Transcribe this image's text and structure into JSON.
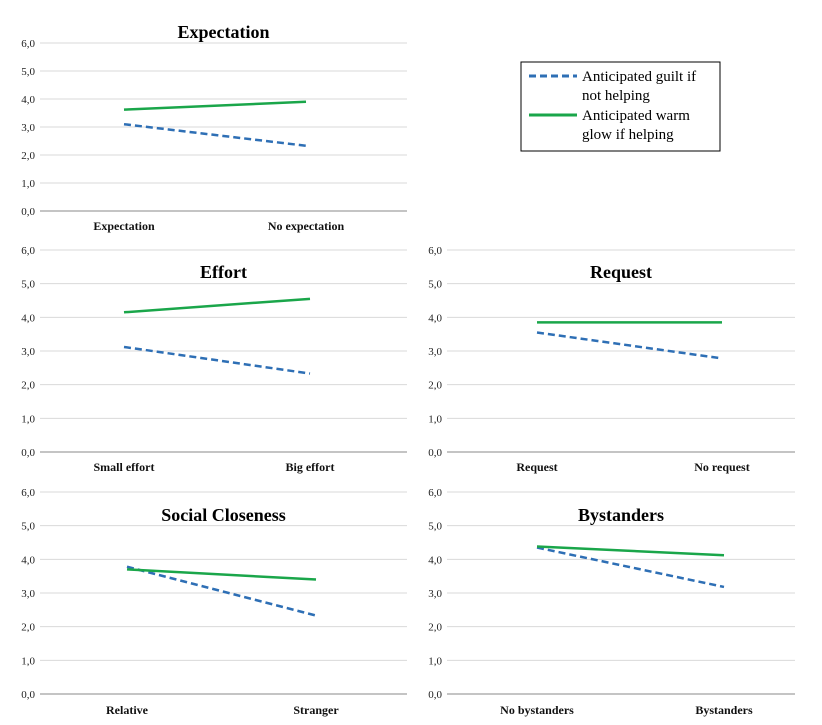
{
  "legend": {
    "items": [
      {
        "label_line1": "Anticipated guilt if",
        "label_line2": "not helping",
        "style": "dashed",
        "color": "#2e6fb5"
      },
      {
        "label_line1": "Anticipated warm",
        "label_line2": "glow if helping",
        "style": "solid",
        "color": "#1aa64a"
      }
    ]
  },
  "chart_data": [
    {
      "type": "line",
      "title": "Expectation",
      "categories": [
        "Expectation",
        "No expectation"
      ],
      "ylim": [
        0,
        6
      ],
      "yticks": [
        "0,0",
        "1,0",
        "2,0",
        "3,0",
        "4,0",
        "5,0",
        "6,0"
      ],
      "grid": true,
      "series": [
        {
          "name": "Anticipated guilt if not helping",
          "values": [
            3.1,
            2.33
          ]
        },
        {
          "name": "Anticipated warm glow if helping",
          "values": [
            3.62,
            3.9
          ]
        }
      ]
    },
    {
      "type": "line",
      "title": "Effort",
      "categories": [
        "Small effort",
        "Big effort"
      ],
      "ylim": [
        0,
        6
      ],
      "yticks": [
        "0,0",
        "1,0",
        "2,0",
        "3,0",
        "4,0",
        "5,0",
        "6,0"
      ],
      "grid": true,
      "series": [
        {
          "name": "Anticipated guilt if not helping",
          "values": [
            3.12,
            2.33
          ]
        },
        {
          "name": "Anticipated warm glow if helping",
          "values": [
            4.15,
            4.55
          ]
        }
      ]
    },
    {
      "type": "line",
      "title": "Request",
      "categories": [
        "Request",
        "No request"
      ],
      "ylim": [
        0,
        6
      ],
      "yticks": [
        "0,0",
        "1,0",
        "2,0",
        "3,0",
        "4,0",
        "5,0",
        "6,0"
      ],
      "grid": true,
      "series": [
        {
          "name": "Anticipated guilt if not helping",
          "values": [
            3.55,
            2.78
          ]
        },
        {
          "name": "Anticipated warm glow if helping",
          "values": [
            3.85,
            3.85
          ]
        }
      ]
    },
    {
      "type": "line",
      "title": "Social Closeness",
      "categories": [
        "Relative",
        "Stranger"
      ],
      "ylim": [
        0,
        6
      ],
      "yticks": [
        "0,0",
        "1,0",
        "2,0",
        "3,0",
        "4,0",
        "5,0",
        "6,0"
      ],
      "grid": true,
      "series": [
        {
          "name": "Anticipated guilt if not helping",
          "values": [
            3.78,
            2.33
          ]
        },
        {
          "name": "Anticipated warm glow if helping",
          "values": [
            3.7,
            3.4
          ]
        }
      ]
    },
    {
      "type": "line",
      "title": "Bystanders",
      "categories": [
        "No bystanders",
        "Bystanders"
      ],
      "ylim": [
        0,
        6
      ],
      "yticks": [
        "0,0",
        "1,0",
        "2,0",
        "3,0",
        "4,0",
        "5,0",
        "6,0"
      ],
      "grid": true,
      "series": [
        {
          "name": "Anticipated guilt if not helping",
          "values": [
            4.35,
            3.18
          ]
        },
        {
          "name": "Anticipated warm glow if helping",
          "values": [
            4.38,
            4.12
          ]
        }
      ]
    }
  ]
}
